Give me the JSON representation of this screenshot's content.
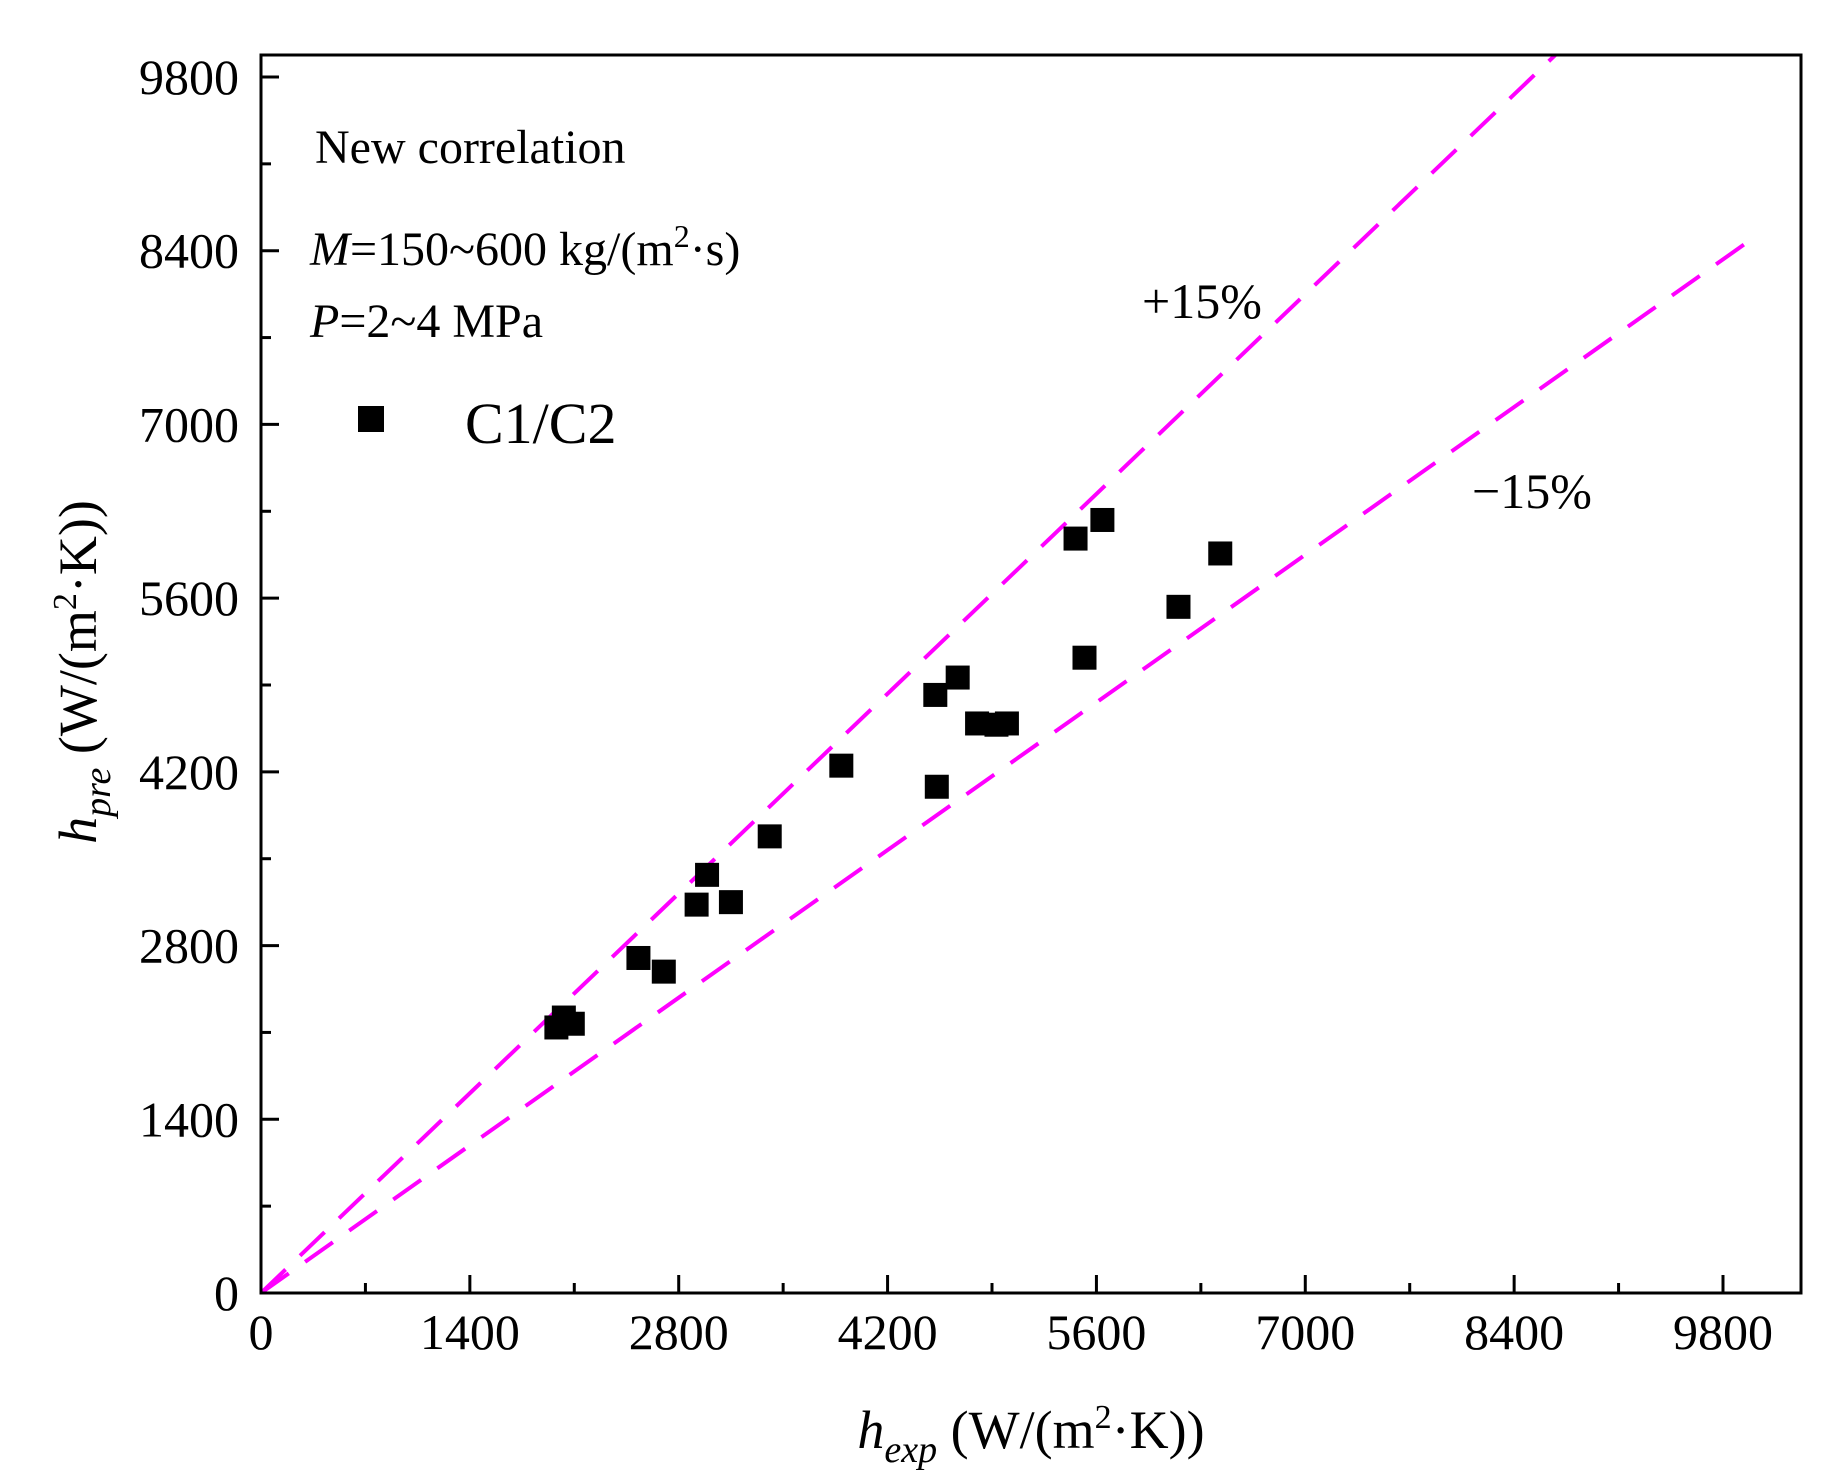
{
  "chart_data": {
    "type": "scatter",
    "title": "",
    "xlabel": {
      "main": "h",
      "sub": "exp",
      "unit_pre": " (W/(m",
      "unit_sup": "2",
      "unit_post": "·K))"
    },
    "ylabel": {
      "main": "h",
      "sub": "pre",
      "unit_pre": " (W/(m",
      "unit_sup": "2",
      "unit_post": "·K))"
    },
    "xlim": [
      0,
      10000
    ],
    "ylim": [
      0,
      10000
    ],
    "xticks": [
      0,
      1400,
      2800,
      4200,
      5600,
      7000,
      8400,
      9800
    ],
    "yticks": [
      0,
      1400,
      2800,
      4200,
      5600,
      7000,
      8400,
      9800
    ],
    "minor_step": 700,
    "annotations": {
      "line1": "New correlation",
      "line2": {
        "var": "M",
        "text": "=150~600 kg/(m",
        "sup": "2",
        "post": "·s)"
      },
      "line3": {
        "var": "P",
        "text": "=2~4 MPa"
      }
    },
    "reference_lines": [
      {
        "name": "+15%",
        "slope": 1.15,
        "color": "#ff00ff"
      },
      {
        "name": "−15%",
        "slope": 0.85,
        "color": "#ff00ff"
      }
    ],
    "series": [
      {
        "name": "C1/C2",
        "marker": "square",
        "color": "#000000",
        "points": [
          [
            1980,
            2140
          ],
          [
            2030,
            2220
          ],
          [
            2090,
            2170
          ],
          [
            2530,
            2700
          ],
          [
            2700,
            2590
          ],
          [
            2920,
            3130
          ],
          [
            2990,
            3370
          ],
          [
            3150,
            3150
          ],
          [
            3410,
            3680
          ],
          [
            3890,
            4250
          ],
          [
            4520,
            4820
          ],
          [
            4530,
            4080
          ],
          [
            4670,
            4960
          ],
          [
            4800,
            4590
          ],
          [
            4930,
            4580
          ],
          [
            5000,
            4590
          ],
          [
            5460,
            6080
          ],
          [
            5520,
            5120
          ],
          [
            5640,
            6230
          ],
          [
            6150,
            5530
          ],
          [
            6430,
            5960
          ]
        ]
      }
    ]
  }
}
